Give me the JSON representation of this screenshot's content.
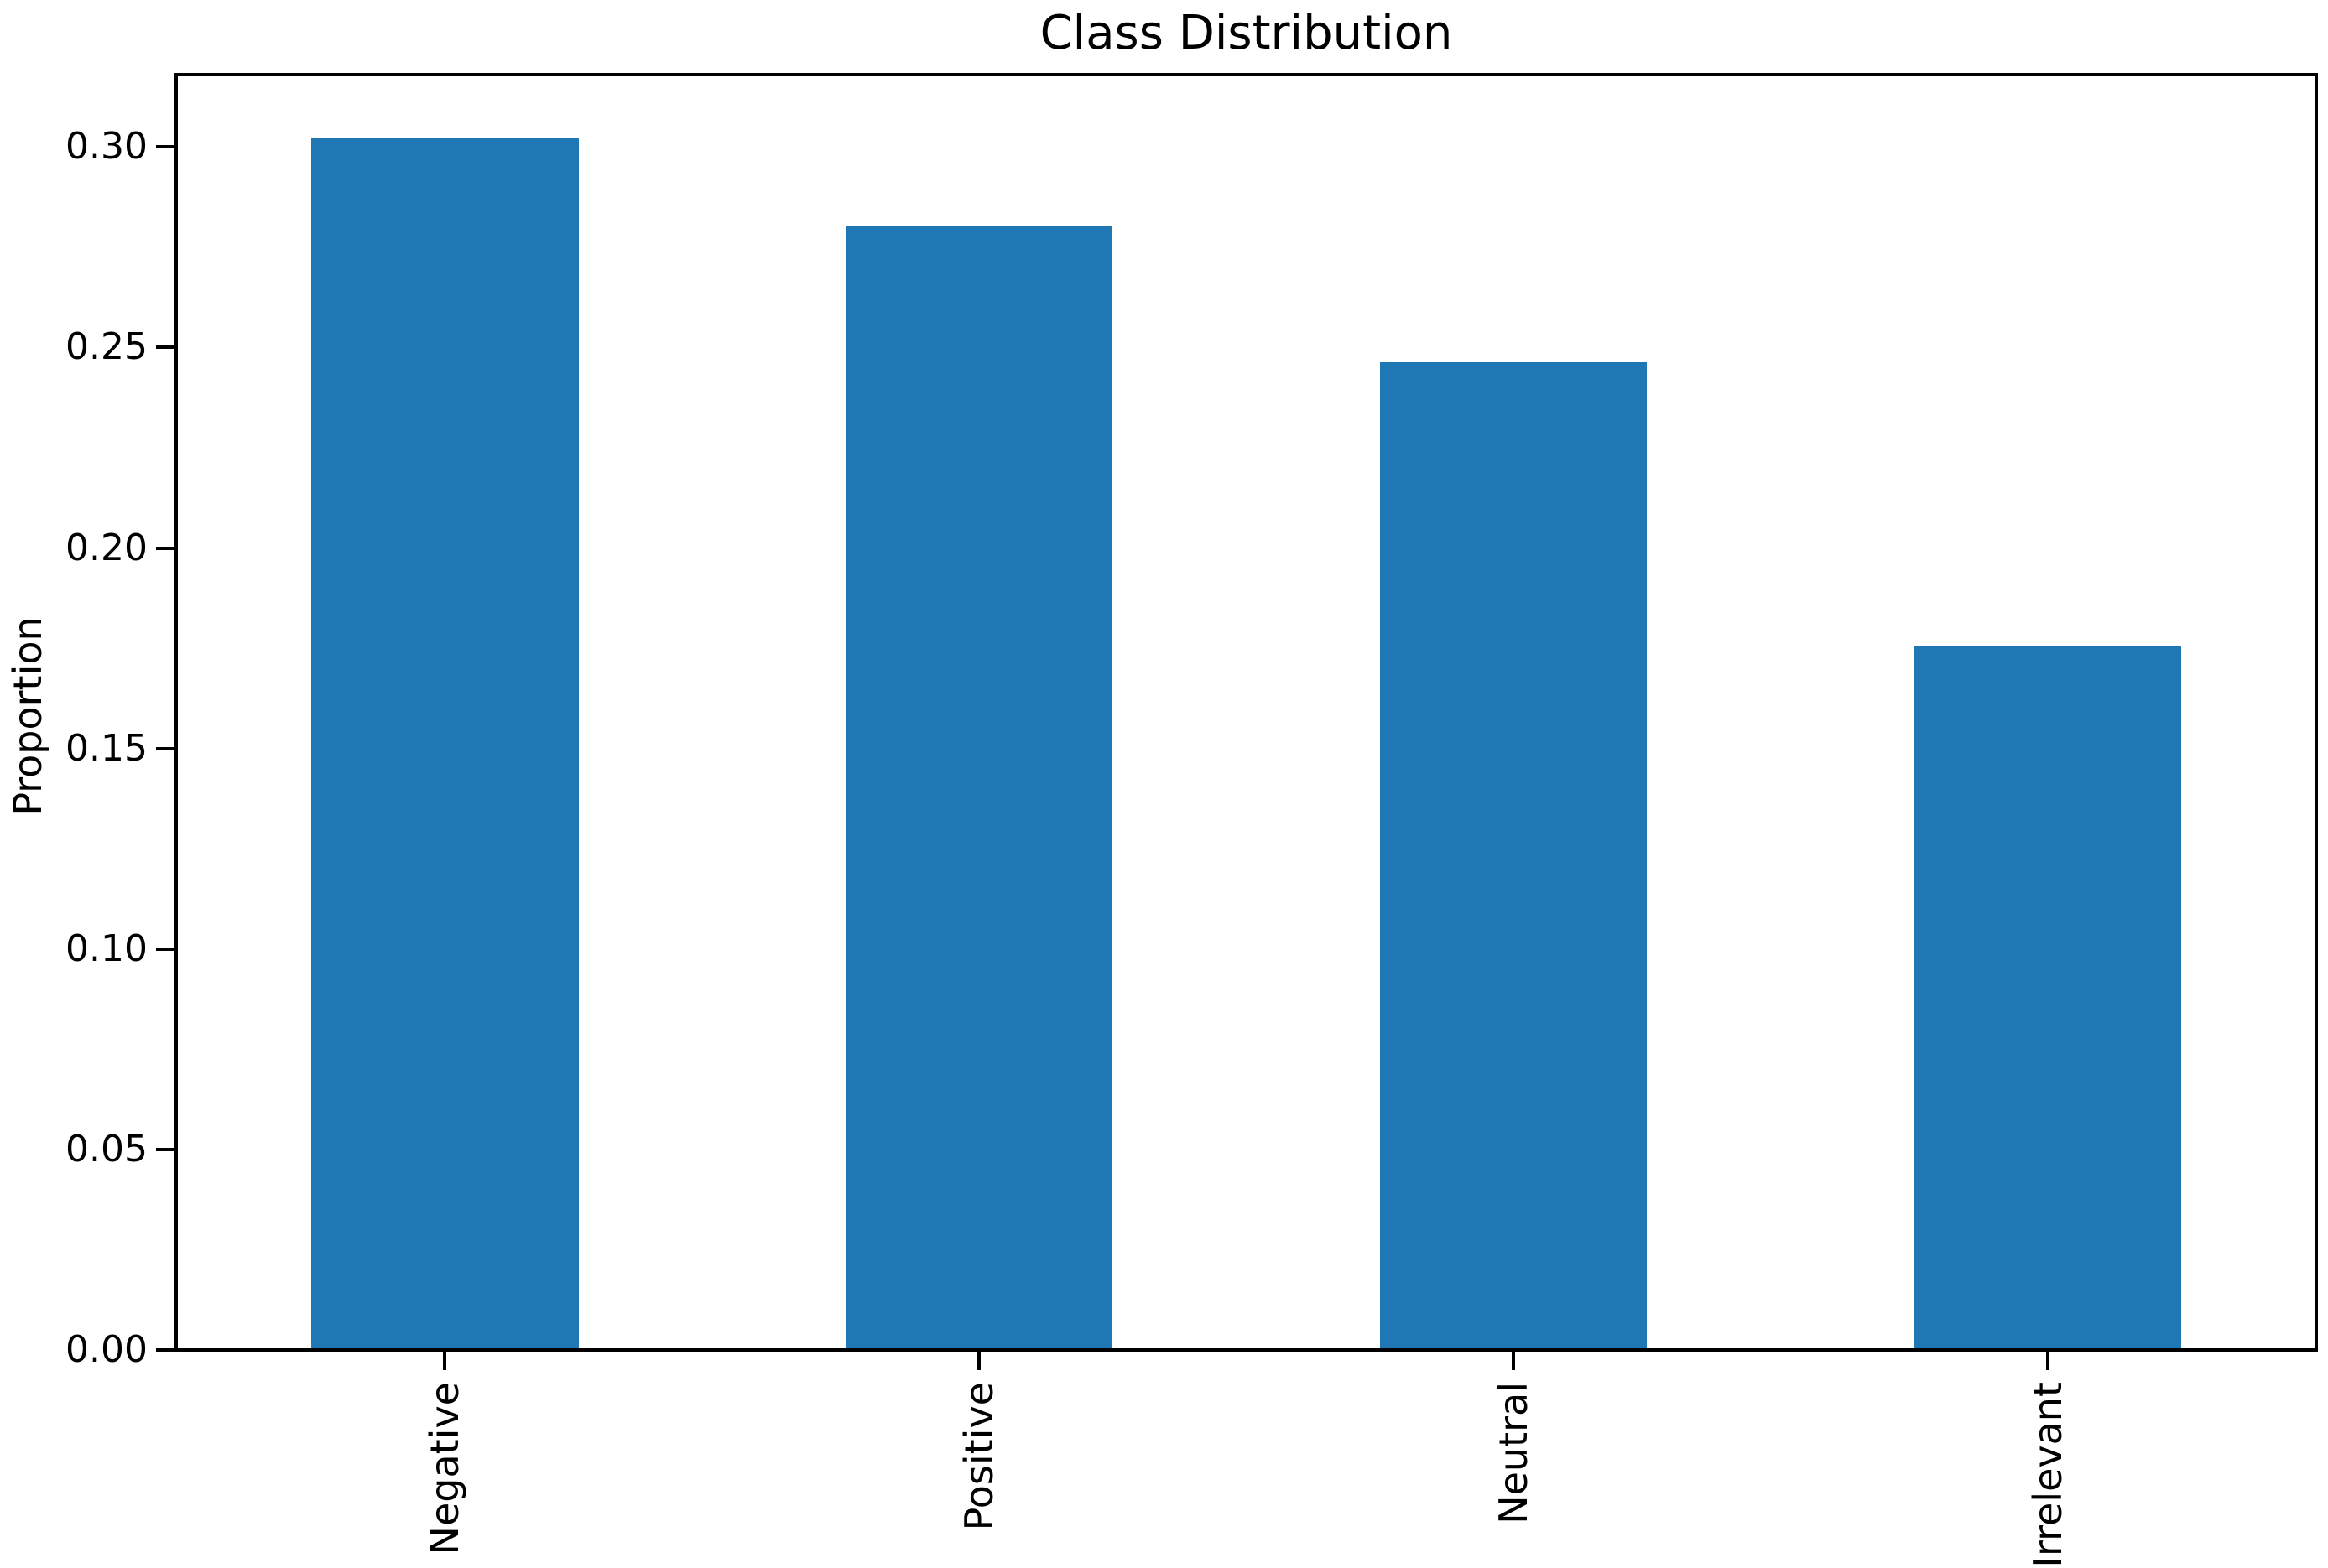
{
  "figure": {
    "background": "#ffffff"
  },
  "chart_data": {
    "type": "bar",
    "title": "Class Distribution",
    "xlabel": "",
    "ylabel": "Proportion",
    "categories": [
      "Negative",
      "Positive",
      "Neutral",
      "Irrelevant"
    ],
    "values": [
      0.302,
      0.28,
      0.246,
      0.175
    ],
    "bar_color": "#1f77b4",
    "axis_color": "#000000",
    "text_color": "#000000",
    "ylim": [
      0,
      0.3172
    ],
    "ytick_values": [
      0.0,
      0.05,
      0.1,
      0.15,
      0.2,
      0.25,
      0.3
    ],
    "ytick_labels": [
      "0.00",
      "0.05",
      "0.10",
      "0.15",
      "0.20",
      "0.25",
      "0.30"
    ],
    "xtick_rotation_deg": 90,
    "bar_width_fraction": 0.5,
    "grid": false,
    "legend": "none"
  }
}
